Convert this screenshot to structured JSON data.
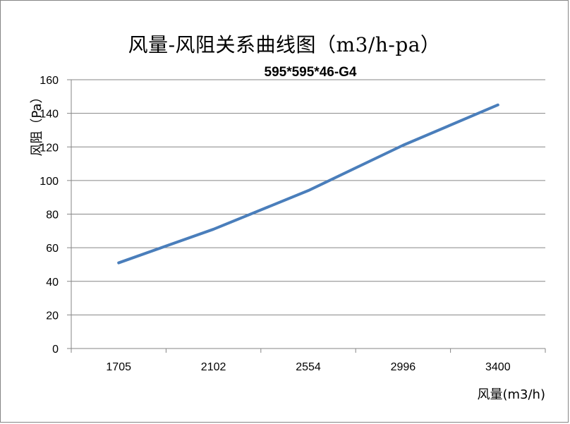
{
  "chart_data": {
    "type": "line",
    "title": "风量-风阻关系曲线图（m3/h-pa）",
    "subtitle": "595*595*46-G4",
    "xlabel": "风量(m3/h)",
    "ylabel": "风阻（Pa）",
    "categories": [
      "1705",
      "2102",
      "2554",
      "2996",
      "3400"
    ],
    "series": [
      {
        "values": [
          51,
          71,
          94,
          121,
          145
        ]
      }
    ],
    "ylim": [
      0,
      160
    ],
    "yticks": [
      0,
      20,
      40,
      60,
      80,
      100,
      120,
      140,
      160
    ],
    "grid": true,
    "line_color": "#4a7ebb"
  }
}
